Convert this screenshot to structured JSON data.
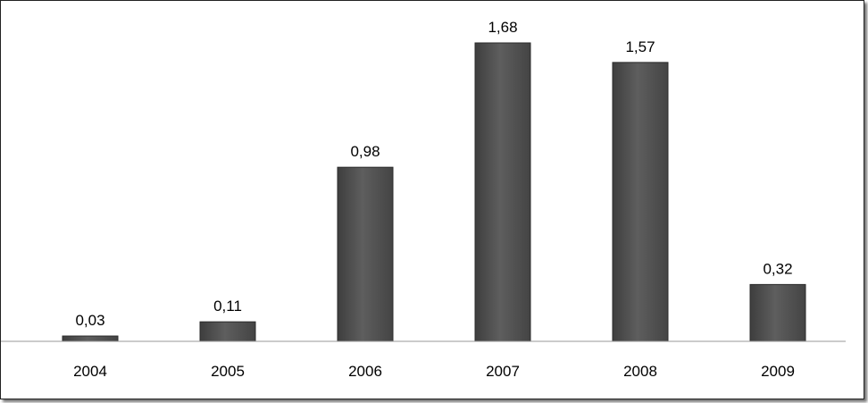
{
  "chart_data": {
    "type": "bar",
    "title": "",
    "xlabel": "",
    "ylabel": "",
    "categories": [
      "2004",
      "2005",
      "2006",
      "2007",
      "2008",
      "2009"
    ],
    "values": [
      0.03,
      0.11,
      0.98,
      1.68,
      1.57,
      0.32
    ],
    "value_labels": [
      "0,03",
      "0,11",
      "0,98",
      "1,68",
      "1,57",
      "0,32"
    ],
    "ylim": [
      0,
      1.68
    ],
    "grid": false,
    "legend": "none",
    "bar_color": "#555555",
    "bar_edge_color": "#2b2b2b"
  }
}
